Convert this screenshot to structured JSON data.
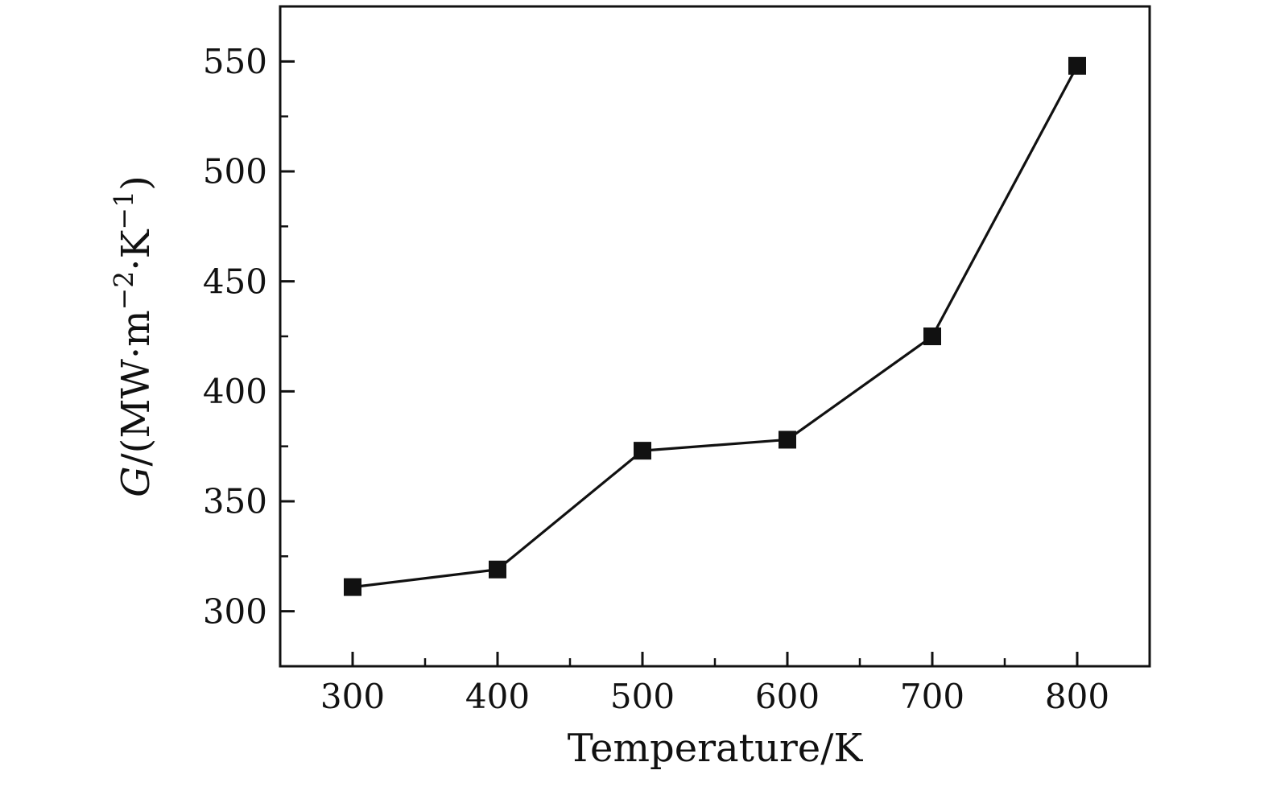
{
  "chart_data": {
    "type": "line",
    "x": [
      300,
      400,
      500,
      600,
      700,
      800
    ],
    "y": [
      311,
      319,
      373,
      378,
      425,
      548
    ],
    "title": "",
    "xlabel": "Temperature/K",
    "ylabel": "G/(MW·m−2·K−1)",
    "ylabel_segments": [
      {
        "text": "G",
        "italic": true
      },
      {
        "text": "/(MW·m"
      },
      {
        "text": "−2",
        "sup": true
      },
      {
        "text": "·K"
      },
      {
        "text": "−1",
        "sup": true
      },
      {
        "text": ")"
      }
    ],
    "xlim": [
      250,
      850
    ],
    "ylim": [
      275,
      575
    ],
    "xticks": [
      300,
      400,
      500,
      600,
      700,
      800
    ],
    "yticks": [
      300,
      350,
      400,
      450,
      500,
      550
    ],
    "x_minor_step": 50,
    "y_minor_step": 25,
    "marker": "square",
    "line_color": "#111111",
    "marker_color": "#111111",
    "frame_color": "#111111",
    "grid": false,
    "legend": "none"
  }
}
